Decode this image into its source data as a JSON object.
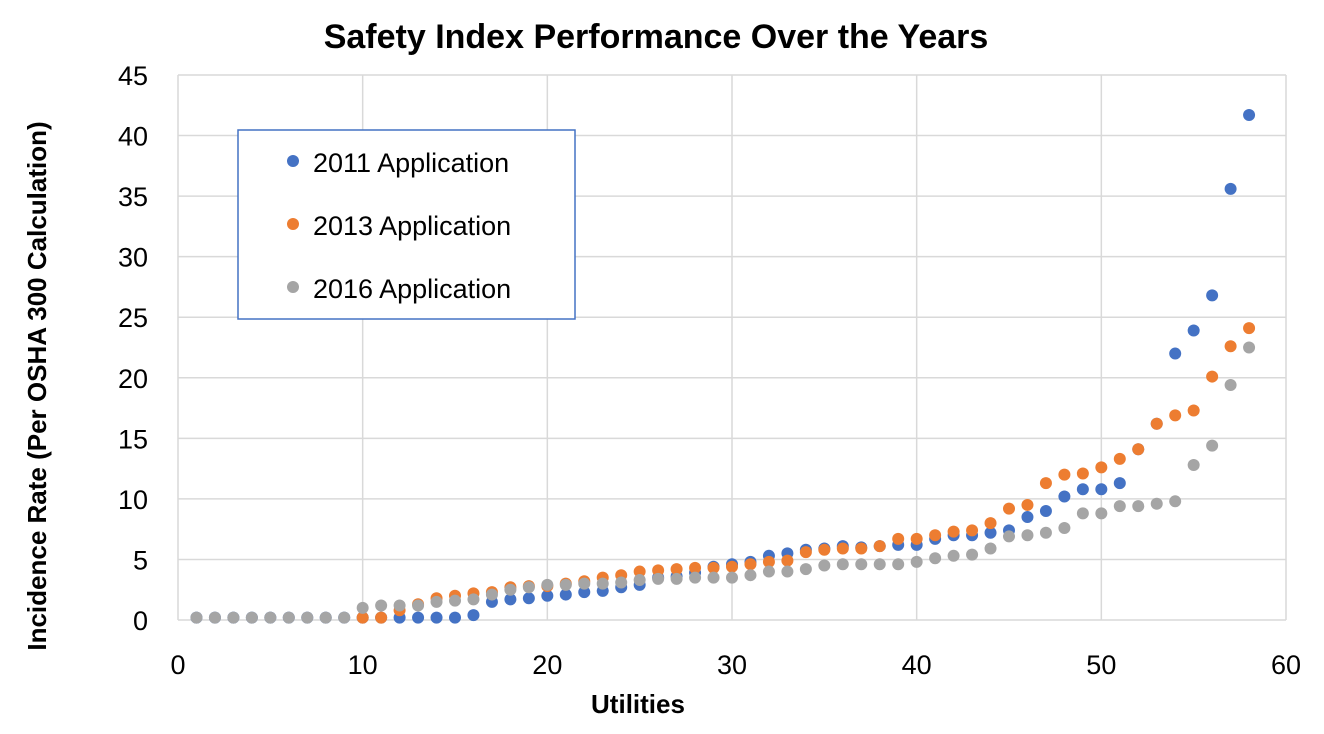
{
  "chart_data": {
    "type": "scatter",
    "title": "Safety Index Performance Over the Years",
    "xlabel": "Utilities",
    "ylabel": "Incidence Rate (Per OSHA 300 Calculation)",
    "xlim": [
      0,
      60
    ],
    "ylim": [
      0,
      45
    ],
    "xticks": [
      "0",
      "10",
      "20",
      "30",
      "40",
      "50",
      "60"
    ],
    "yticks": [
      "0",
      "5",
      "10",
      "15",
      "20",
      "25",
      "30",
      "35",
      "40",
      "45"
    ],
    "grid": true,
    "legend_position": "top-left",
    "series": [
      {
        "name": "2011 Application",
        "color": "#4472C4",
        "x": [
          1,
          2,
          3,
          4,
          5,
          6,
          7,
          8,
          9,
          10,
          11,
          12,
          13,
          14,
          15,
          16,
          17,
          18,
          19,
          20,
          21,
          22,
          23,
          24,
          25,
          26,
          27,
          28,
          29,
          30,
          31,
          32,
          33,
          34,
          35,
          36,
          37,
          38,
          39,
          40,
          41,
          42,
          43,
          44,
          45,
          46,
          47,
          48,
          49,
          50,
          51,
          52,
          53,
          54,
          55,
          56,
          57,
          58
        ],
        "y": [
          0.2,
          0.2,
          0.2,
          0.2,
          0.2,
          0.2,
          0.2,
          0.2,
          0.2,
          0.2,
          0.2,
          0.2,
          0.2,
          0.2,
          0.2,
          0.4,
          1.5,
          1.7,
          1.8,
          2.0,
          2.1,
          2.3,
          2.4,
          2.7,
          2.9,
          3.5,
          3.6,
          3.9,
          4.4,
          4.6,
          4.8,
          5.3,
          5.5,
          5.8,
          5.9,
          6.1,
          6.0,
          6.1,
          6.2,
          6.2,
          6.7,
          7.0,
          7.0,
          7.2,
          7.4,
          8.5,
          9.0,
          10.2,
          10.8,
          10.8,
          11.3,
          14.1,
          16.2,
          22.0,
          23.9,
          26.8,
          35.6,
          41.7
        ]
      },
      {
        "name": "2013 Application",
        "color": "#ED7D31",
        "x": [
          10,
          11,
          12,
          13,
          14,
          15,
          16,
          17,
          18,
          19,
          20,
          21,
          22,
          23,
          24,
          25,
          26,
          27,
          28,
          29,
          30,
          31,
          32,
          33,
          34,
          35,
          36,
          37,
          38,
          39,
          40,
          41,
          42,
          43,
          44,
          45,
          46,
          47,
          48,
          49,
          50,
          51,
          52,
          53,
          54,
          55,
          56,
          57,
          58
        ],
        "y": [
          0.2,
          0.2,
          0.8,
          1.3,
          1.8,
          2.0,
          2.2,
          2.3,
          2.7,
          2.8,
          2.8,
          3.0,
          3.2,
          3.5,
          3.7,
          4.0,
          4.1,
          4.2,
          4.3,
          4.3,
          4.4,
          4.6,
          4.8,
          4.9,
          5.6,
          5.8,
          5.9,
          5.9,
          6.1,
          6.7,
          6.7,
          7.0,
          7.3,
          7.4,
          8.0,
          9.2,
          9.5,
          11.3,
          12.0,
          12.1,
          12.6,
          13.3,
          14.1,
          16.2,
          16.9,
          17.3,
          20.1,
          22.6,
          24.1
        ]
      },
      {
        "name": "2016 Application",
        "color": "#A5A5A5",
        "x": [
          1,
          2,
          3,
          4,
          5,
          6,
          7,
          8,
          9,
          10,
          11,
          12,
          13,
          14,
          15,
          16,
          17,
          18,
          19,
          20,
          21,
          22,
          23,
          24,
          25,
          26,
          27,
          28,
          29,
          30,
          31,
          32,
          33,
          34,
          35,
          36,
          37,
          38,
          39,
          40,
          41,
          42,
          43,
          44,
          45,
          46,
          47,
          48,
          49,
          50,
          51,
          52,
          53,
          54,
          55,
          56,
          57,
          58
        ],
        "y": [
          0.2,
          0.2,
          0.2,
          0.2,
          0.2,
          0.2,
          0.2,
          0.2,
          0.2,
          1.0,
          1.2,
          1.2,
          1.2,
          1.5,
          1.6,
          1.7,
          2.1,
          2.5,
          2.7,
          2.9,
          2.9,
          3.0,
          3.0,
          3.1,
          3.3,
          3.4,
          3.4,
          3.5,
          3.5,
          3.5,
          3.7,
          4.0,
          4.0,
          4.2,
          4.5,
          4.6,
          4.6,
          4.6,
          4.6,
          4.8,
          5.1,
          5.3,
          5.4,
          5.9,
          6.9,
          7.0,
          7.2,
          7.6,
          8.8,
          8.8,
          9.4,
          9.4,
          9.6,
          9.8,
          12.8,
          14.4,
          19.4,
          22.5
        ]
      }
    ]
  }
}
